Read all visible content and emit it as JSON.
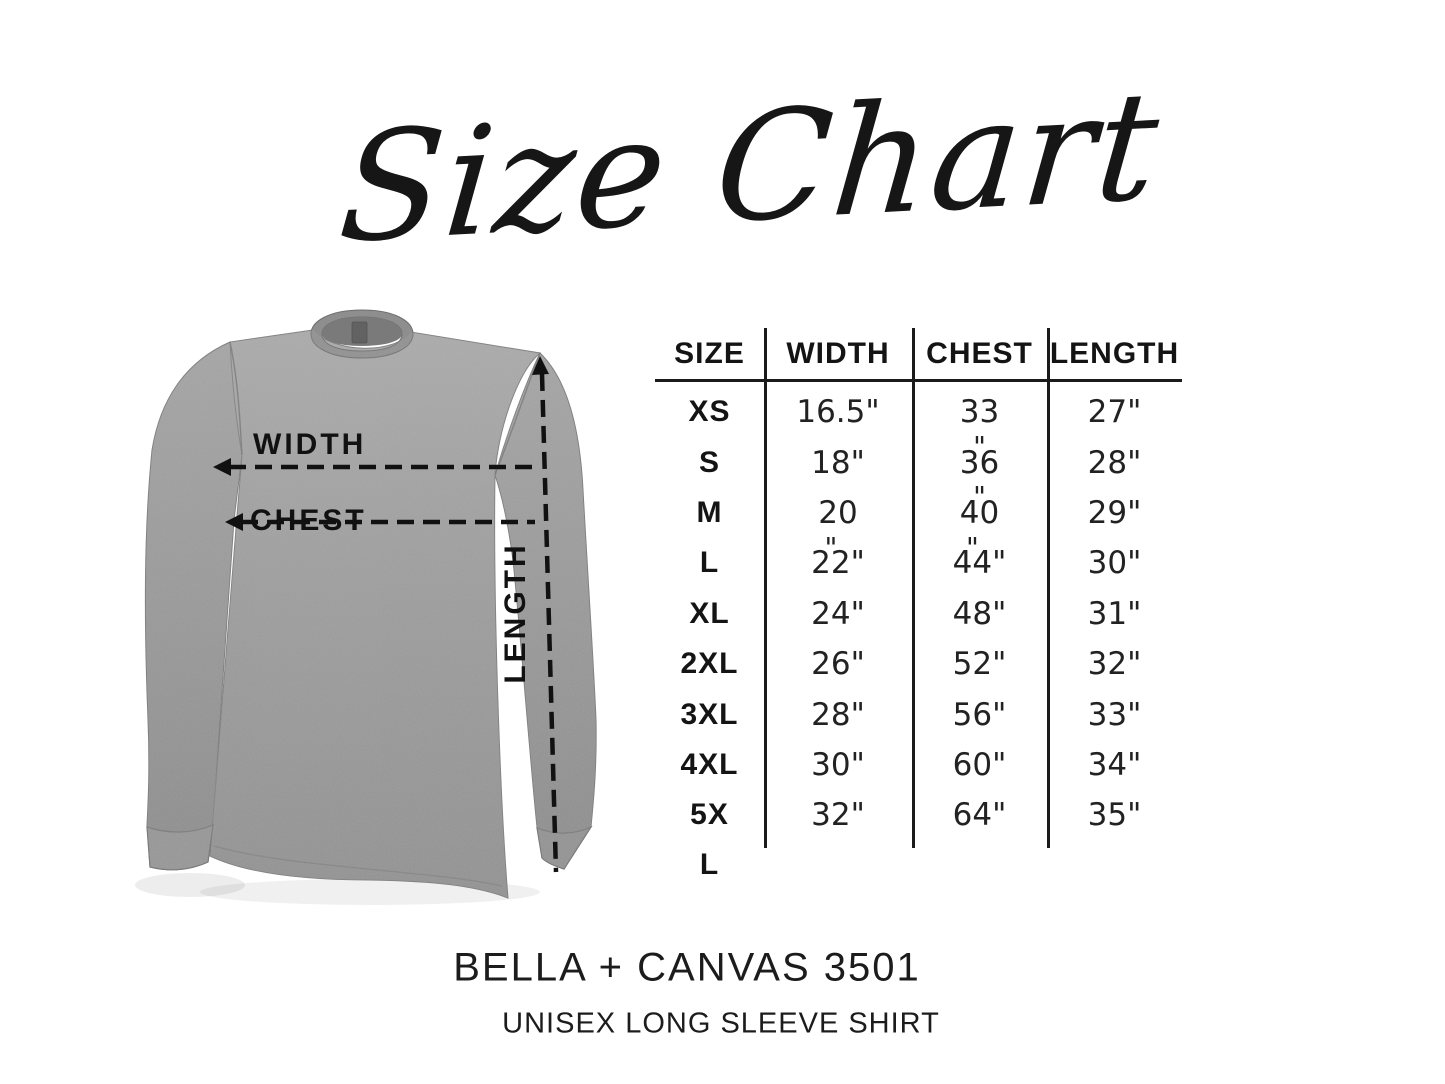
{
  "title": "Size Chart",
  "diagram": {
    "width_label": "WIDTH",
    "chest_label": "CHEST",
    "length_label": "LENGTH",
    "shirt_color": "#9b9b9b",
    "annotation_color": "#111111"
  },
  "table": {
    "headers": [
      "SIZE",
      "WIDTH",
      "CHEST",
      "LENGTH"
    ],
    "rows": [
      {
        "size": "XS",
        "cells": [
          {
            "t": "16.5\""
          },
          {
            "t": "33"
          },
          {
            "t": "27\""
          }
        ]
      },
      {
        "size": "S",
        "cells": [
          {
            "t": "18\""
          },
          {
            "t": "36",
            "above": "\""
          },
          {
            "t": "28\""
          }
        ]
      },
      {
        "size": "M",
        "cells": [
          {
            "t": "20"
          },
          {
            "t": "40",
            "above": "\""
          },
          {
            "t": "29\""
          }
        ]
      },
      {
        "size": "L",
        "cells": [
          {
            "t": "22",
            "above": "\"",
            "suffix": "\""
          },
          {
            "t": "44",
            "above": "\"",
            "suffix": "\""
          },
          {
            "t": "30\""
          }
        ]
      },
      {
        "size": "XL",
        "cells": [
          {
            "t": "24\""
          },
          {
            "t": "48\""
          },
          {
            "t": "31\""
          }
        ]
      },
      {
        "size": "2XL",
        "cells": [
          {
            "t": "26\""
          },
          {
            "t": "52\""
          },
          {
            "t": "32\""
          }
        ]
      },
      {
        "size": "3XL",
        "cells": [
          {
            "t": "28\""
          },
          {
            "t": "56\""
          },
          {
            "t": "33\""
          }
        ]
      },
      {
        "size": "4XL",
        "cells": [
          {
            "t": "30\""
          },
          {
            "t": "60\""
          },
          {
            "t": "34\""
          }
        ]
      },
      {
        "size": "5X",
        "cells": [
          {
            "t": "32\""
          },
          {
            "t": "64\""
          },
          {
            "t": "35\""
          }
        ]
      },
      {
        "size": "L",
        "wrap": true,
        "cells": [
          {
            "t": ""
          },
          {
            "t": ""
          },
          {
            "t": ""
          }
        ]
      }
    ]
  },
  "footer": {
    "product": "BELLA + CANVAS 3501",
    "subtitle": "UNISEX LONG SLEEVE SHIRT"
  },
  "chart_data": {
    "type": "table",
    "title": "Size Chart",
    "columns": [
      "SIZE",
      "WIDTH",
      "CHEST",
      "LENGTH"
    ],
    "rows": [
      [
        "XS",
        "16.5\"",
        "33\"",
        "27\""
      ],
      [
        "S",
        "18\"",
        "36\"",
        "28\""
      ],
      [
        "M",
        "20\"",
        "40\"",
        "29\""
      ],
      [
        "L",
        "22\"",
        "44\"",
        "30\""
      ],
      [
        "XL",
        "24\"",
        "48\"",
        "31\""
      ],
      [
        "2XL",
        "26\"",
        "52\"",
        "32\""
      ],
      [
        "3XL",
        "28\"",
        "56\"",
        "33\""
      ],
      [
        "4XL",
        "30\"",
        "60\"",
        "34\""
      ],
      [
        "5XL",
        "32\"",
        "64\"",
        "35\""
      ]
    ],
    "units": "inches",
    "product": "BELLA + CANVAS 3501",
    "product_type": "UNISEX LONG SLEEVE SHIRT"
  }
}
